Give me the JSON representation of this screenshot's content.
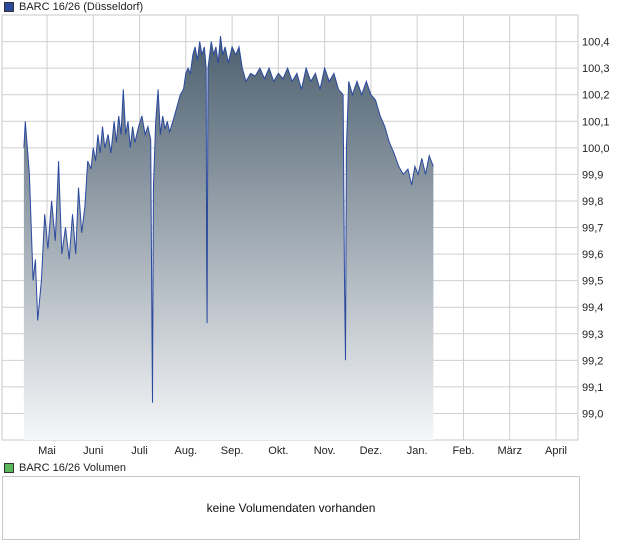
{
  "legend": {
    "price_label": "BARC 16/26 (Düsseldorf)",
    "price_color": "#2b4a9e",
    "volume_label": "BARC 16/26 Volumen",
    "volume_color": "#5cb85c"
  },
  "volume": {
    "message": "keine Volumendaten vorhanden"
  },
  "colors": {
    "line": "#2b4a9e",
    "fill_top": "#4c5f6f",
    "fill_bottom": "#f6f7f9",
    "grid": "#cfcfcf",
    "border": "#c8c8c8"
  },
  "chart_data": {
    "type": "area",
    "x_labels": [
      "Mai",
      "Juni",
      "Juli",
      "Aug.",
      "Sep.",
      "Okt.",
      "Nov.",
      "Dez.",
      "Jan.",
      "Feb.",
      "März",
      "April"
    ],
    "y_ticks": [
      "100,4",
      "100,3",
      "100,2",
      "100,1",
      "100,0",
      "99,9",
      "99,8",
      "99,7",
      "99,6",
      "99,5",
      "99,4",
      "99,3",
      "99,2",
      "99,1",
      "99,0"
    ],
    "ylim": [
      98.9,
      100.5
    ],
    "grid": true,
    "series": [
      {
        "values": [
          [
            0,
            100.0
          ],
          [
            0.03,
            100.1
          ],
          [
            0.12,
            99.9
          ],
          [
            0.2,
            99.5
          ],
          [
            0.25,
            99.58
          ],
          [
            0.3,
            99.35
          ],
          [
            0.38,
            99.5
          ],
          [
            0.45,
            99.75
          ],
          [
            0.52,
            99.62
          ],
          [
            0.6,
            99.8
          ],
          [
            0.68,
            99.65
          ],
          [
            0.75,
            99.95
          ],
          [
            0.82,
            99.6
          ],
          [
            0.9,
            99.7
          ],
          [
            0.98,
            99.58
          ],
          [
            1.05,
            99.75
          ],
          [
            1.12,
            99.6
          ],
          [
            1.18,
            99.85
          ],
          [
            1.25,
            99.68
          ],
          [
            1.32,
            99.78
          ],
          [
            1.38,
            99.95
          ],
          [
            1.45,
            99.92
          ],
          [
            1.5,
            100.0
          ],
          [
            1.55,
            99.95
          ],
          [
            1.6,
            100.05
          ],
          [
            1.65,
            99.98
          ],
          [
            1.7,
            100.08
          ],
          [
            1.75,
            100.0
          ],
          [
            1.82,
            100.05
          ],
          [
            1.88,
            99.98
          ],
          [
            1.95,
            100.1
          ],
          [
            2.0,
            100.02
          ],
          [
            2.05,
            100.12
          ],
          [
            2.1,
            100.05
          ],
          [
            2.15,
            100.22
          ],
          [
            2.2,
            100.05
          ],
          [
            2.25,
            100.1
          ],
          [
            2.3,
            100.0
          ],
          [
            2.35,
            100.08
          ],
          [
            2.4,
            100.02
          ],
          [
            2.48,
            100.08
          ],
          [
            2.55,
            100.12
          ],
          [
            2.62,
            100.05
          ],
          [
            2.68,
            100.08
          ],
          [
            2.74,
            100.03
          ],
          [
            2.77,
            99.3
          ],
          [
            2.78,
            99.04
          ],
          [
            2.8,
            99.85
          ],
          [
            2.85,
            100.1
          ],
          [
            2.9,
            100.22
          ],
          [
            2.95,
            100.05
          ],
          [
            3.0,
            100.12
          ],
          [
            3.05,
            100.07
          ],
          [
            3.1,
            100.1
          ],
          [
            3.15,
            100.06
          ],
          [
            3.22,
            100.1
          ],
          [
            3.3,
            100.15
          ],
          [
            3.38,
            100.2
          ],
          [
            3.45,
            100.22
          ],
          [
            3.5,
            100.28
          ],
          [
            3.55,
            100.3
          ],
          [
            3.6,
            100.28
          ],
          [
            3.65,
            100.35
          ],
          [
            3.7,
            100.38
          ],
          [
            3.75,
            100.33
          ],
          [
            3.8,
            100.4
          ],
          [
            3.85,
            100.35
          ],
          [
            3.9,
            100.38
          ],
          [
            3.94,
            100.3
          ],
          [
            3.95,
            99.6
          ],
          [
            3.96,
            99.34
          ],
          [
            3.98,
            100.3
          ],
          [
            4.05,
            100.4
          ],
          [
            4.1,
            100.35
          ],
          [
            4.15,
            100.38
          ],
          [
            4.2,
            100.32
          ],
          [
            4.25,
            100.42
          ],
          [
            4.3,
            100.35
          ],
          [
            4.35,
            100.38
          ],
          [
            4.42,
            100.32
          ],
          [
            4.5,
            100.38
          ],
          [
            4.58,
            100.35
          ],
          [
            4.65,
            100.38
          ],
          [
            4.72,
            100.3
          ],
          [
            4.8,
            100.25
          ],
          [
            4.9,
            100.28
          ],
          [
            5.0,
            100.27
          ],
          [
            5.1,
            100.3
          ],
          [
            5.2,
            100.26
          ],
          [
            5.3,
            100.3
          ],
          [
            5.4,
            100.25
          ],
          [
            5.5,
            100.28
          ],
          [
            5.6,
            100.26
          ],
          [
            5.7,
            100.3
          ],
          [
            5.8,
            100.25
          ],
          [
            5.9,
            100.28
          ],
          [
            6.0,
            100.22
          ],
          [
            6.1,
            100.3
          ],
          [
            6.2,
            100.25
          ],
          [
            6.3,
            100.28
          ],
          [
            6.4,
            100.22
          ],
          [
            6.5,
            100.3
          ],
          [
            6.6,
            100.25
          ],
          [
            6.7,
            100.28
          ],
          [
            6.8,
            100.22
          ],
          [
            6.9,
            100.2
          ],
          [
            6.93,
            99.5
          ],
          [
            6.95,
            99.2
          ],
          [
            6.97,
            100.0
          ],
          [
            7.02,
            100.25
          ],
          [
            7.1,
            100.2
          ],
          [
            7.2,
            100.25
          ],
          [
            7.3,
            100.2
          ],
          [
            7.4,
            100.25
          ],
          [
            7.5,
            100.2
          ],
          [
            7.6,
            100.18
          ],
          [
            7.7,
            100.12
          ],
          [
            7.8,
            100.08
          ],
          [
            7.9,
            100.02
          ],
          [
            8.0,
            99.98
          ],
          [
            8.1,
            99.93
          ],
          [
            8.2,
            99.9
          ],
          [
            8.3,
            99.92
          ],
          [
            8.38,
            99.86
          ],
          [
            8.45,
            99.93
          ],
          [
            8.52,
            99.9
          ],
          [
            8.6,
            99.96
          ],
          [
            8.68,
            99.9
          ],
          [
            8.76,
            99.97
          ],
          [
            8.85,
            99.93
          ]
        ]
      }
    ]
  }
}
